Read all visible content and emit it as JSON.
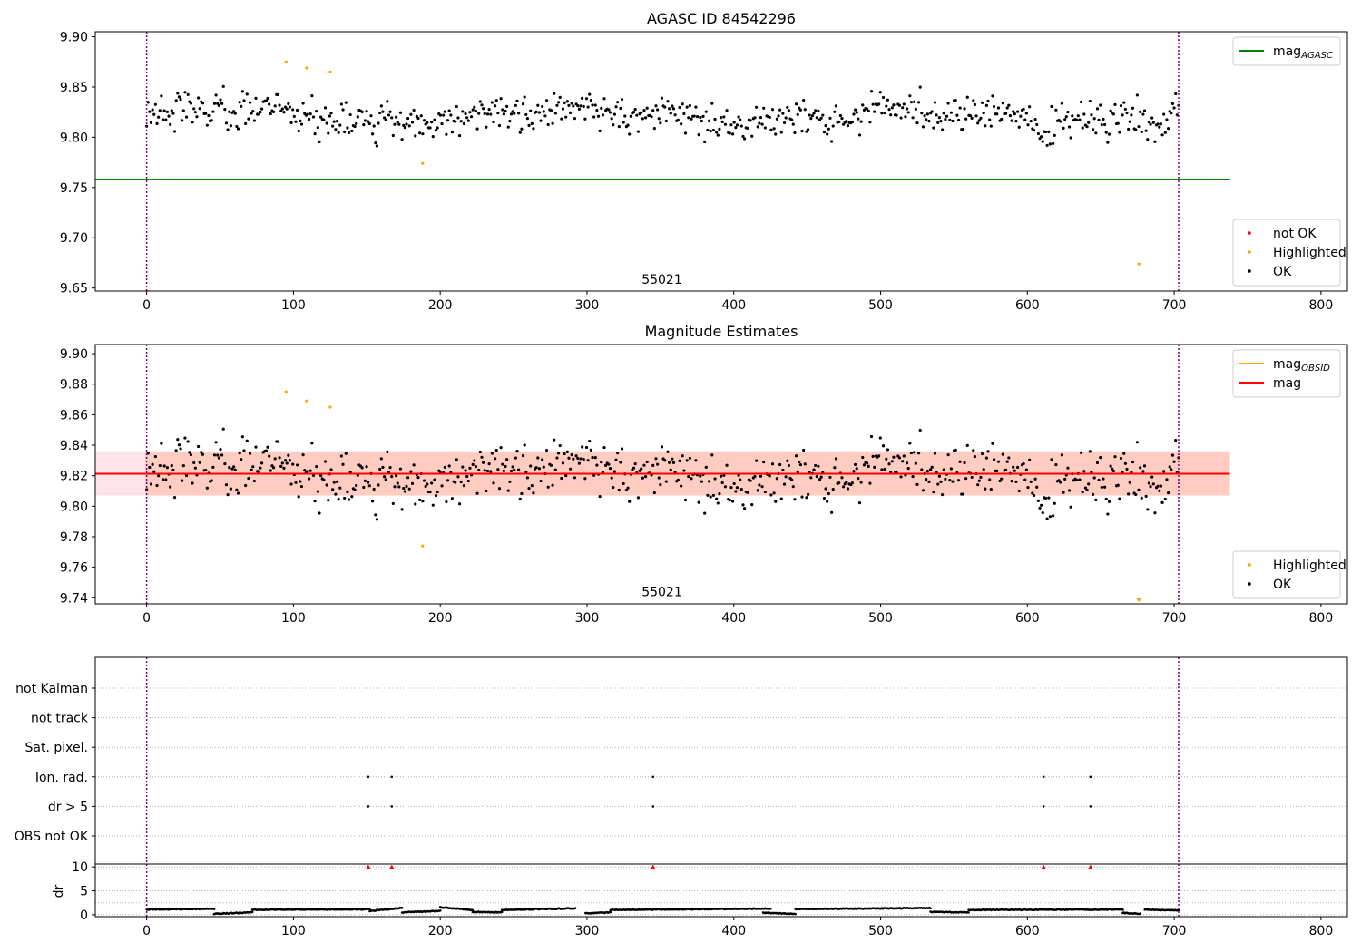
{
  "figure": {
    "background": "#ffffff"
  },
  "colors": {
    "ok": "#000000",
    "highlighted": "#ffa500",
    "not_ok": "#ff0000",
    "agasc_line": "#008000",
    "mag_line": "#ff0000",
    "mag_obsid": "#ffa500",
    "band_outer": "#ffc0cb",
    "band_inner": "#ffa07a",
    "obs_boundary": "#800080",
    "grid": "#b0b0b0"
  },
  "chart_data": [
    {
      "type": "scatter",
      "title": "AGASC ID 84542296",
      "xlabel": "",
      "ylabel": "",
      "xlim": [
        -35,
        818
      ],
      "ylim": [
        9.647,
        9.905
      ],
      "xticks": [
        0,
        100,
        200,
        300,
        400,
        500,
        600,
        700,
        800
      ],
      "yticks": [
        9.65,
        9.7,
        9.75,
        9.8,
        9.85,
        9.9
      ],
      "grid": false,
      "obs_boundaries": [
        0,
        703
      ],
      "obs_label": {
        "text": "55021",
        "x": 351,
        "y": 9.654
      },
      "hlines": [
        {
          "name": "mag_AGASC",
          "y": 9.758,
          "x": [
            -35,
            738
          ],
          "color": "#008000"
        }
      ],
      "series": [
        {
          "name": "not OK",
          "marker": "dot",
          "color": "#ff0000",
          "points": []
        },
        {
          "name": "Highlighted",
          "marker": "dot",
          "color": "#ffa500",
          "points": [
            [
              95,
              9.875
            ],
            [
              109,
              9.869
            ],
            [
              125,
              9.865
            ],
            [
              188,
              9.774
            ],
            [
              676,
              9.674
            ]
          ]
        },
        {
          "name": "OK",
          "marker": "dot",
          "color": "#000000",
          "generated": {
            "seed": 84542296,
            "n": 700,
            "x": [
              0,
              703
            ],
            "base": 9.821,
            "sigma": 0.0115,
            "min": 9.78,
            "max": 9.862
          }
        }
      ],
      "legends": [
        {
          "loc": "upper right",
          "entries": [
            {
              "kind": "line",
              "color": "#008000",
              "label": "mag",
              "sub": "AGASC"
            }
          ]
        },
        {
          "loc": "lower right",
          "entries": [
            {
              "kind": "dot",
              "color": "#ff0000",
              "label": "not OK"
            },
            {
              "kind": "dot",
              "color": "#ffa500",
              "label": "Highlighted"
            },
            {
              "kind": "dot",
              "color": "#000000",
              "label": "OK"
            }
          ]
        }
      ]
    },
    {
      "type": "scatter",
      "title": "Magnitude Estimates",
      "xlabel": "",
      "ylabel": "",
      "xlim": [
        -35,
        818
      ],
      "ylim": [
        9.736,
        9.906
      ],
      "xticks": [
        0,
        100,
        200,
        300,
        400,
        500,
        600,
        700,
        800
      ],
      "yticks": [
        9.74,
        9.76,
        9.78,
        9.8,
        9.82,
        9.84,
        9.86,
        9.88,
        9.9
      ],
      "grid": false,
      "obs_boundaries": [
        0,
        703
      ],
      "obs_label": {
        "text": "55021",
        "x": 351,
        "y": 9.741
      },
      "bands": [
        {
          "x": [
            -35,
            738
          ],
          "y": [
            9.807,
            9.836
          ],
          "color": "#ffc0cb",
          "opacity": 0.45
        },
        {
          "x": [
            -1,
            738
          ],
          "y": [
            9.807,
            9.836
          ],
          "color": "#ffa07a",
          "opacity": 0.35
        }
      ],
      "hlines": [
        {
          "name": "mag_OBSID",
          "y": 9.8213,
          "x": [
            -1,
            703
          ],
          "color": "#ffa500"
        },
        {
          "name": "mag",
          "y": 9.8213,
          "x": [
            -35,
            738
          ],
          "color": "#ff0000"
        }
      ],
      "series": [
        {
          "name": "Highlighted",
          "marker": "dot",
          "color": "#ffa500",
          "points": [
            [
              95,
              9.875
            ],
            [
              109,
              9.869
            ],
            [
              125,
              9.865
            ],
            [
              188,
              9.774
            ]
          ],
          "offscale": [
            [
              676,
              9.737
            ]
          ]
        },
        {
          "name": "OK",
          "marker": "dot",
          "color": "#000000",
          "generated": {
            "seed": 84542296,
            "n": 700,
            "x": [
              0,
              703
            ],
            "base": 9.821,
            "sigma": 0.0115,
            "min": 9.78,
            "max": 9.862
          }
        }
      ],
      "legends": [
        {
          "loc": "upper right",
          "entries": [
            {
              "kind": "line",
              "color": "#ffa500",
              "label": "mag",
              "sub": "OBSID"
            },
            {
              "kind": "line",
              "color": "#ff0000",
              "label": "mag"
            }
          ]
        },
        {
          "loc": "lower right",
          "entries": [
            {
              "kind": "dot",
              "color": "#ffa500",
              "label": "Highlighted"
            },
            {
              "kind": "dot",
              "color": "#000000",
              "label": "OK"
            }
          ]
        }
      ]
    },
    {
      "type": "scatter",
      "title": "",
      "xlabel": "",
      "ylabel": "",
      "xlim": [
        -35,
        818
      ],
      "xticks": [
        0,
        100,
        200,
        300,
        400,
        500,
        600,
        700,
        800
      ],
      "obs_boundaries": [
        0,
        703
      ],
      "flag_rows": [
        "not Kalman",
        "not track",
        "Sat. pixel.",
        "Ion. rad.",
        "dr > 5",
        "OBS not OK"
      ],
      "grid": true,
      "flag_points": {
        "Ion. rad.": [
          151,
          167,
          345,
          611,
          643
        ],
        "dr > 5": [
          151,
          167,
          345,
          611,
          643
        ]
      }
    },
    {
      "type": "scatter",
      "title": "",
      "xlabel": "",
      "ylabel": "dr",
      "xlim": [
        -35,
        818
      ],
      "ylim": [
        -0.4,
        10.6
      ],
      "xticks": [
        0,
        100,
        200,
        300,
        400,
        500,
        600,
        700,
        800
      ],
      "yticks": [
        0,
        5,
        10
      ],
      "grid": true,
      "obs_boundaries": [
        0,
        703
      ],
      "segments": [
        {
          "x": [
            0,
            46
          ],
          "y": [
            1.1,
            1.25
          ]
        },
        {
          "x": [
            46,
            72
          ],
          "y": [
            0.2,
            0.5
          ]
        },
        {
          "x": [
            72,
            152
          ],
          "y": [
            1.05,
            1.15
          ]
        },
        {
          "x": [
            152,
            174
          ],
          "y": [
            0.8,
            1.4
          ]
        },
        {
          "x": [
            174,
            200
          ],
          "y": [
            0.5,
            0.8
          ]
        },
        {
          "x": [
            200,
            222
          ],
          "y": [
            1.6,
            1.0
          ]
        },
        {
          "x": [
            222,
            242
          ],
          "y": [
            0.6,
            0.5
          ]
        },
        {
          "x": [
            242,
            292
          ],
          "y": [
            1.0,
            1.35
          ]
        },
        {
          "x": [
            299,
            316
          ],
          "y": [
            0.3,
            0.5
          ]
        },
        {
          "x": [
            316,
            425
          ],
          "y": [
            1.0,
            1.3
          ]
        },
        {
          "x": [
            420,
            442
          ],
          "y": [
            0.4,
            0.2
          ]
        },
        {
          "x": [
            442,
            534
          ],
          "y": [
            1.2,
            1.4
          ]
        },
        {
          "x": [
            534,
            560
          ],
          "y": [
            0.6,
            0.5
          ]
        },
        {
          "x": [
            560,
            665
          ],
          "y": [
            1.0,
            1.1
          ]
        },
        {
          "x": [
            665,
            677
          ],
          "y": [
            0.4,
            0.2
          ]
        },
        {
          "x": [
            680,
            703
          ],
          "y": [
            1.1,
            0.9
          ]
        }
      ],
      "offscale": [
        [
          151,
          10
        ],
        [
          167,
          10
        ],
        [
          345,
          10
        ],
        [
          611,
          10
        ],
        [
          643,
          10
        ]
      ],
      "offscale_color": "#ff0000"
    }
  ]
}
